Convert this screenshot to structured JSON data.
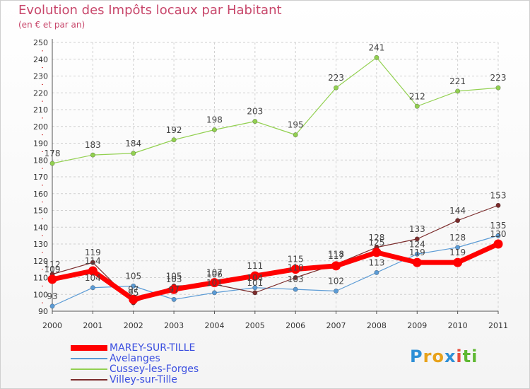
{
  "chart_data": {
    "type": "line",
    "title": "Evolution des Impôts locaux par Habitant",
    "subtitle": "(en € et par an)",
    "categories": [
      "2000",
      "2001",
      "2002",
      "2003",
      "2004",
      "2005",
      "2006",
      "2007",
      "2008",
      "2009",
      "2010",
      "2011"
    ],
    "ylim": [
      90,
      250
    ],
    "yticks": [
      90,
      100,
      110,
      120,
      130,
      140,
      150,
      160,
      170,
      180,
      190,
      200,
      210,
      220,
      230,
      240,
      250
    ],
    "grid": true,
    "legend_position": "bottom-left",
    "series": [
      {
        "name": "MAREY-SUR-TILLE",
        "color": "#ff0000",
        "values": [
          109,
          114,
          97,
          103,
          107,
          111,
          115,
          117,
          125,
          119,
          119,
          130
        ]
      },
      {
        "name": "Avelanges",
        "color": "#5b9bd5",
        "values": [
          93,
          104,
          105,
          97,
          101,
          104,
          103,
          102,
          113,
          124,
          128,
          135
        ]
      },
      {
        "name": "Cussey-les-Forges",
        "color": "#92d050",
        "values": [
          178,
          183,
          184,
          192,
          198,
          203,
          195,
          223,
          241,
          212,
          221,
          223
        ]
      },
      {
        "name": "Villey-sur-Tille",
        "color": "#7b2c2c",
        "values": [
          112,
          119,
          95,
          105,
          106,
          101,
          110,
          118,
          128,
          133,
          144,
          153
        ]
      }
    ]
  },
  "logo": {
    "letters": [
      "P",
      "r",
      "o",
      "x",
      "i",
      "t",
      "i"
    ],
    "colors": [
      "#2e8fd6",
      "#e8a21a",
      "#e8a21a",
      "#2e8fd6",
      "#e74c3c",
      "#5fb832",
      "#5fb832"
    ]
  }
}
